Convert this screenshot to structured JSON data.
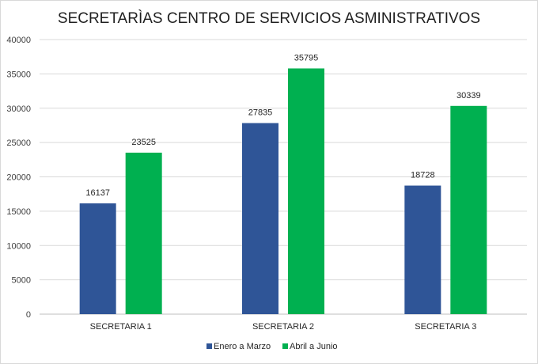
{
  "chart_data": {
    "type": "bar",
    "title": "SECRETARÌAS CENTRO DE SERVICIOS ASMINISTRATIVOS",
    "categories": [
      "SECRETARIA 1",
      "SECRETARIA 2",
      "SECRETARIA 3"
    ],
    "series": [
      {
        "name": "Enero a Marzo",
        "values": [
          16137,
          27835,
          18728
        ],
        "color": "#2f5597"
      },
      {
        "name": "Abril a Junio",
        "values": [
          23525,
          35795,
          30339
        ],
        "color": "#00b050"
      }
    ],
    "ylim": [
      0,
      40000
    ],
    "yticks": [
      0,
      5000,
      10000,
      15000,
      20000,
      25000,
      30000,
      35000,
      40000
    ],
    "xlabel": "",
    "ylabel": "",
    "grid": true,
    "legend_position": "bottom"
  }
}
